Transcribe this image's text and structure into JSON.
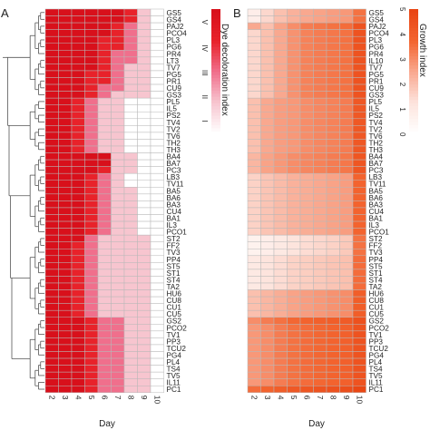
{
  "panels": {
    "a": {
      "letter": "A"
    },
    "b": {
      "letter": "B"
    }
  },
  "colors": {
    "grid": "#b8b8b8",
    "dendrogram": "#555555",
    "scale_a": [
      "#ffffff",
      "#f7c5cf",
      "#f06f8c",
      "#e8222a",
      "#d8101b"
    ],
    "scale_b": [
      "#ffffff",
      "#fde3dc",
      "#f9a88f",
      "#f3642f",
      "#e94412"
    ]
  },
  "chart_data": [
    {
      "type": "heatmap",
      "panel": "A",
      "title": "",
      "xlabel": "Day",
      "ylabel": "",
      "x": [
        "2",
        "3",
        "4",
        "5",
        "6",
        "7",
        "8",
        "9",
        "10"
      ],
      "y": [
        "GS5",
        "GS4",
        "PAJ2",
        "PCO4",
        "PL3",
        "PG6",
        "PR4",
        "LT3",
        "TV7",
        "PG5",
        "PR1",
        "CU9",
        "GS3",
        "PL5",
        "IL5",
        "PS2",
        "TV4",
        "TV2",
        "TV6",
        "TH2",
        "TH3",
        "BA4",
        "BA7",
        "PC3",
        "LB3",
        "TV11",
        "BA5",
        "BA6",
        "BA3",
        "CU4",
        "BA1",
        "IL3",
        "PCO1",
        "ST2",
        "FF2",
        "TV3",
        "PP4",
        "ST5",
        "ST1",
        "ST4",
        "TA2",
        "HU6",
        "CU8",
        "CU1",
        "CU5",
        "GS2",
        "PCO2",
        "TV1",
        "PP3",
        "TCU2",
        "PG4",
        "PL4",
        "TS4",
        "TV5",
        "IL11",
        "PC1"
      ],
      "colorbar": {
        "label": "Dye decoloration index",
        "ticks": [
          "I",
          "II",
          "III",
          "IV",
          "V"
        ]
      },
      "values": [
        [
          5,
          5,
          5,
          5,
          5,
          5,
          4,
          2,
          1
        ],
        [
          5,
          5,
          5,
          5,
          5,
          5,
          4,
          2,
          1
        ],
        [
          5,
          5,
          5,
          5,
          5,
          4,
          3,
          2,
          1
        ],
        [
          5,
          5,
          5,
          5,
          5,
          4,
          3,
          2,
          1
        ],
        [
          5,
          5,
          5,
          5,
          4,
          4,
          3,
          2,
          1
        ],
        [
          5,
          5,
          5,
          5,
          4,
          4,
          3,
          2,
          1
        ],
        [
          5,
          5,
          5,
          5,
          4,
          3,
          3,
          2,
          1
        ],
        [
          5,
          5,
          5,
          5,
          4,
          3,
          3,
          2,
          1
        ],
        [
          5,
          5,
          5,
          5,
          4,
          3,
          2,
          2,
          1
        ],
        [
          5,
          5,
          5,
          4,
          4,
          3,
          2,
          2,
          1
        ],
        [
          5,
          5,
          5,
          4,
          4,
          3,
          2,
          2,
          1
        ],
        [
          5,
          5,
          5,
          4,
          3,
          3,
          2,
          2,
          1
        ],
        [
          5,
          5,
          5,
          4,
          3,
          2,
          2,
          2,
          1
        ],
        [
          5,
          5,
          4,
          3,
          2,
          2,
          1,
          1,
          1
        ],
        [
          5,
          5,
          4,
          3,
          2,
          2,
          1,
          1,
          1
        ],
        [
          5,
          5,
          4,
          3,
          2,
          2,
          1,
          1,
          1
        ],
        [
          5,
          5,
          4,
          3,
          2,
          2,
          1,
          1,
          1
        ],
        [
          5,
          5,
          4,
          3,
          2,
          2,
          1,
          1,
          1
        ],
        [
          5,
          5,
          4,
          3,
          2,
          2,
          1,
          1,
          1
        ],
        [
          5,
          5,
          4,
          3,
          2,
          2,
          1,
          1,
          1
        ],
        [
          5,
          5,
          4,
          3,
          2,
          2,
          1,
          1,
          1
        ],
        [
          5,
          5,
          5,
          5,
          5,
          2,
          2,
          1,
          1
        ],
        [
          5,
          5,
          5,
          5,
          5,
          2,
          2,
          1,
          1
        ],
        [
          5,
          5,
          5,
          5,
          4,
          2,
          2,
          1,
          1
        ],
        [
          5,
          5,
          5,
          4,
          3,
          2,
          1,
          1,
          1
        ],
        [
          5,
          5,
          5,
          4,
          3,
          2,
          1,
          1,
          1
        ],
        [
          5,
          5,
          5,
          4,
          3,
          2,
          2,
          1,
          1
        ],
        [
          5,
          5,
          5,
          4,
          3,
          2,
          2,
          1,
          1
        ],
        [
          5,
          5,
          5,
          4,
          3,
          2,
          2,
          1,
          1
        ],
        [
          5,
          5,
          5,
          4,
          3,
          2,
          2,
          1,
          1
        ],
        [
          5,
          5,
          5,
          4,
          3,
          2,
          2,
          1,
          1
        ],
        [
          5,
          5,
          5,
          4,
          3,
          2,
          2,
          1,
          1
        ],
        [
          5,
          5,
          5,
          4,
          3,
          2,
          2,
          1,
          1
        ],
        [
          5,
          5,
          5,
          3,
          2,
          2,
          2,
          2,
          1
        ],
        [
          5,
          5,
          4,
          3,
          2,
          2,
          2,
          2,
          1
        ],
        [
          5,
          5,
          4,
          3,
          2,
          2,
          2,
          2,
          1
        ],
        [
          5,
          5,
          4,
          3,
          2,
          2,
          2,
          2,
          1
        ],
        [
          5,
          5,
          4,
          3,
          2,
          2,
          2,
          2,
          1
        ],
        [
          5,
          5,
          4,
          3,
          2,
          2,
          2,
          2,
          1
        ],
        [
          5,
          5,
          4,
          3,
          2,
          2,
          2,
          2,
          1
        ],
        [
          5,
          5,
          4,
          3,
          2,
          2,
          2,
          2,
          1
        ],
        [
          5,
          5,
          4,
          3,
          2,
          2,
          2,
          2,
          1
        ],
        [
          5,
          5,
          4,
          3,
          2,
          2,
          2,
          2,
          1
        ],
        [
          5,
          5,
          4,
          3,
          2,
          2,
          2,
          2,
          1
        ],
        [
          5,
          5,
          4,
          3,
          2,
          2,
          2,
          2,
          1
        ],
        [
          5,
          5,
          5,
          4,
          3,
          3,
          2,
          2,
          1
        ],
        [
          5,
          5,
          5,
          4,
          3,
          3,
          2,
          2,
          1
        ],
        [
          5,
          5,
          5,
          4,
          3,
          3,
          2,
          2,
          1
        ],
        [
          5,
          5,
          5,
          4,
          3,
          3,
          2,
          2,
          1
        ],
        [
          5,
          5,
          5,
          4,
          3,
          3,
          2,
          2,
          1
        ],
        [
          5,
          5,
          5,
          4,
          3,
          3,
          2,
          2,
          1
        ],
        [
          5,
          5,
          5,
          4,
          3,
          3,
          2,
          2,
          1
        ],
        [
          5,
          5,
          5,
          4,
          3,
          3,
          2,
          2,
          1
        ],
        [
          5,
          5,
          5,
          4,
          3,
          3,
          2,
          2,
          1
        ],
        [
          5,
          5,
          5,
          4,
          3,
          3,
          2,
          2,
          1
        ],
        [
          5,
          5,
          5,
          4,
          3,
          3,
          2,
          2,
          1
        ]
      ]
    },
    {
      "type": "heatmap",
      "panel": "B",
      "title": "",
      "xlabel": "Day",
      "ylabel": "",
      "x": [
        "2",
        "3",
        "4",
        "5",
        "6",
        "7",
        "8",
        "9",
        "10"
      ],
      "y": [
        "GS5",
        "GS4",
        "PAJ2",
        "PCO4",
        "PL3",
        "PG6",
        "PR4",
        "IL10",
        "TV7",
        "PG5",
        "PR1",
        "CU9",
        "GS3",
        "PL5",
        "IL5",
        "PS2",
        "TV4",
        "TV2",
        "TV6",
        "TH2",
        "TH3",
        "BA4",
        "BA7",
        "PC3",
        "LB3",
        "TV11",
        "BA5",
        "BA6",
        "BA3",
        "CU4",
        "BA1",
        "IL3",
        "PCO1",
        "ST2",
        "FF2",
        "TV3",
        "PP4",
        "ST5",
        "ST1",
        "ST4",
        "TA2",
        "HU6",
        "CU8",
        "CU1",
        "CU5",
        "GS2",
        "PCO2",
        "TV1",
        "PP3",
        "TCU2",
        "PG4",
        "PL4",
        "TS4",
        "TV5",
        "IL11",
        "PC1"
      ],
      "colorbar": {
        "label": "Growth index",
        "ticks": [
          "0",
          "1",
          "2",
          "3",
          "4",
          "5"
        ],
        "min": 0,
        "max": 5
      },
      "values": [
        [
          0.8,
          1.5,
          2.0,
          2.3,
          2.5,
          2.6,
          2.7,
          2.8,
          3.5
        ],
        [
          0.8,
          1.5,
          2.0,
          2.3,
          2.5,
          2.6,
          2.7,
          2.8,
          3.5
        ],
        [
          2.5,
          2.0,
          2.6,
          3.0,
          3.3,
          3.4,
          3.5,
          3.6,
          4.4
        ],
        [
          1.5,
          2.0,
          2.5,
          2.9,
          3.2,
          3.3,
          3.4,
          3.5,
          4.4
        ],
        [
          1.5,
          2.0,
          2.5,
          2.9,
          3.2,
          3.3,
          3.4,
          3.5,
          4.4
        ],
        [
          1.5,
          2.0,
          2.5,
          2.9,
          3.2,
          3.3,
          3.4,
          3.5,
          4.4
        ],
        [
          1.5,
          2.0,
          2.5,
          2.9,
          3.2,
          3.3,
          3.4,
          3.5,
          4.4
        ],
        [
          1.5,
          2.0,
          2.5,
          2.9,
          3.2,
          3.3,
          3.4,
          3.5,
          4.4
        ],
        [
          1.5,
          2.0,
          2.5,
          2.9,
          3.2,
          3.3,
          3.4,
          3.5,
          4.4
        ],
        [
          1.5,
          2.0,
          2.5,
          2.9,
          3.2,
          3.3,
          3.4,
          3.5,
          4.4
        ],
        [
          1.5,
          2.0,
          2.5,
          2.9,
          3.2,
          3.3,
          3.4,
          3.5,
          4.4
        ],
        [
          1.5,
          2.0,
          2.5,
          2.9,
          3.2,
          3.3,
          3.4,
          3.5,
          4.4
        ],
        [
          1.5,
          2.0,
          2.5,
          2.9,
          3.2,
          3.3,
          3.4,
          3.5,
          4.4
        ],
        [
          2.0,
          2.5,
          2.7,
          2.8,
          3.0,
          3.1,
          3.2,
          3.3,
          4.2
        ],
        [
          2.0,
          2.5,
          2.7,
          2.8,
          3.0,
          3.1,
          3.2,
          3.3,
          4.2
        ],
        [
          2.0,
          2.5,
          2.7,
          2.8,
          3.0,
          3.1,
          3.2,
          3.3,
          4.2
        ],
        [
          2.0,
          2.5,
          2.7,
          2.8,
          3.0,
          3.1,
          3.2,
          3.3,
          4.2
        ],
        [
          2.0,
          2.5,
          2.7,
          2.8,
          3.0,
          3.1,
          3.2,
          3.3,
          4.2
        ],
        [
          2.0,
          2.5,
          2.7,
          2.8,
          3.0,
          3.1,
          3.2,
          3.3,
          4.2
        ],
        [
          2.0,
          2.5,
          2.7,
          2.8,
          3.0,
          3.1,
          3.2,
          3.3,
          4.2
        ],
        [
          2.0,
          2.5,
          2.7,
          2.8,
          3.0,
          3.1,
          3.2,
          3.3,
          4.2
        ],
        [
          2.2,
          2.6,
          2.8,
          3.0,
          3.1,
          3.2,
          3.3,
          3.4,
          4.3
        ],
        [
          2.2,
          2.6,
          2.8,
          3.0,
          3.1,
          3.2,
          3.3,
          3.4,
          4.3
        ],
        [
          2.2,
          2.6,
          2.8,
          3.0,
          3.1,
          3.2,
          3.3,
          3.4,
          4.3
        ],
        [
          1.6,
          1.9,
          2.1,
          2.3,
          2.4,
          2.5,
          2.6,
          2.7,
          3.8
        ],
        [
          1.6,
          1.9,
          2.1,
          2.3,
          2.4,
          2.5,
          2.6,
          2.7,
          3.8
        ],
        [
          1.6,
          1.9,
          2.1,
          2.3,
          2.4,
          2.5,
          2.6,
          2.7,
          3.8
        ],
        [
          1.6,
          1.9,
          2.1,
          2.3,
          2.4,
          2.5,
          2.6,
          2.7,
          3.8
        ],
        [
          1.6,
          1.9,
          2.1,
          2.3,
          2.4,
          2.5,
          2.6,
          2.7,
          3.8
        ],
        [
          1.6,
          1.9,
          2.1,
          2.3,
          2.4,
          2.5,
          2.6,
          2.7,
          3.8
        ],
        [
          1.6,
          1.9,
          2.1,
          2.3,
          2.4,
          2.5,
          2.6,
          2.7,
          3.8
        ],
        [
          1.6,
          1.9,
          2.1,
          2.3,
          2.4,
          2.5,
          2.6,
          2.7,
          3.8
        ],
        [
          1.6,
          1.9,
          2.1,
          2.3,
          2.4,
          2.5,
          2.6,
          2.7,
          3.8
        ],
        [
          0.6,
          0.8,
          1.0,
          1.2,
          1.4,
          1.5,
          1.6,
          1.8,
          3.5
        ],
        [
          0.6,
          0.8,
          1.0,
          1.2,
          1.4,
          1.5,
          1.6,
          1.8,
          3.5
        ],
        [
          0.6,
          0.8,
          1.0,
          1.2,
          1.4,
          1.5,
          1.6,
          1.8,
          3.5
        ],
        [
          1.0,
          1.2,
          1.4,
          1.6,
          1.7,
          1.8,
          1.9,
          2.0,
          3.6
        ],
        [
          1.0,
          1.2,
          1.4,
          1.6,
          1.7,
          1.8,
          1.9,
          2.0,
          3.6
        ],
        [
          1.0,
          1.2,
          1.4,
          1.6,
          1.7,
          1.8,
          1.9,
          2.0,
          3.6
        ],
        [
          1.0,
          1.2,
          1.4,
          1.6,
          1.7,
          1.8,
          1.9,
          2.0,
          3.6
        ],
        [
          1.0,
          1.2,
          1.4,
          1.6,
          1.7,
          1.8,
          1.9,
          2.0,
          3.6
        ],
        [
          2.0,
          2.2,
          2.4,
          2.6,
          2.7,
          2.8,
          2.9,
          3.0,
          4.0
        ],
        [
          2.0,
          2.2,
          2.4,
          2.6,
          2.7,
          2.8,
          2.9,
          3.0,
          4.0
        ],
        [
          2.0,
          2.2,
          2.4,
          2.6,
          2.7,
          2.8,
          2.9,
          3.0,
          4.0
        ],
        [
          2.0,
          2.2,
          2.4,
          2.6,
          2.7,
          2.8,
          2.9,
          3.0,
          4.0
        ],
        [
          3.0,
          3.3,
          3.5,
          3.7,
          3.8,
          3.9,
          4.0,
          4.1,
          4.5
        ],
        [
          2.8,
          3.0,
          3.3,
          3.5,
          3.6,
          3.7,
          3.8,
          3.9,
          4.4
        ],
        [
          2.8,
          3.0,
          3.3,
          3.5,
          3.6,
          3.7,
          3.8,
          3.9,
          4.4
        ],
        [
          2.8,
          3.0,
          3.3,
          3.5,
          3.6,
          3.7,
          3.8,
          3.9,
          4.4
        ],
        [
          2.8,
          3.0,
          3.3,
          3.5,
          3.6,
          3.7,
          3.8,
          3.9,
          4.4
        ],
        [
          2.8,
          3.0,
          3.3,
          3.5,
          3.6,
          3.7,
          3.8,
          3.9,
          4.4
        ],
        [
          2.8,
          3.0,
          3.3,
          3.5,
          3.6,
          3.7,
          3.8,
          3.9,
          4.4
        ],
        [
          2.8,
          3.0,
          3.3,
          3.5,
          3.6,
          3.7,
          3.8,
          3.9,
          4.4
        ],
        [
          2.8,
          3.0,
          3.3,
          3.5,
          3.6,
          3.7,
          3.8,
          3.9,
          4.4
        ],
        [
          2.8,
          3.0,
          3.3,
          3.5,
          3.6,
          3.7,
          3.8,
          3.9,
          4.4
        ],
        [
          3.6,
          3.8,
          4.0,
          4.2,
          4.3,
          4.4,
          4.5,
          4.6,
          4.9
        ]
      ]
    }
  ]
}
